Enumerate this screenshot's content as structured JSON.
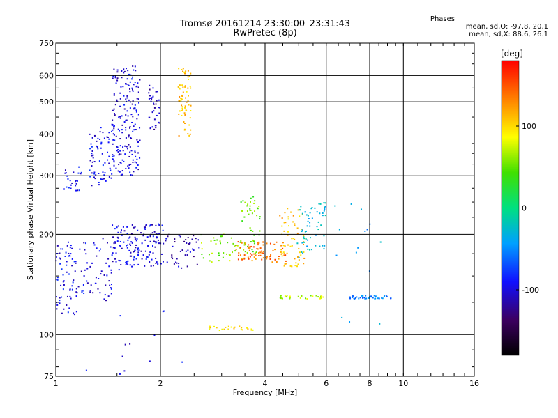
{
  "header": {
    "title": "Tromsø 20161214 23:30:00–23:31:43",
    "subtitle": "RwPretec (8p)",
    "phases_label": "Phases",
    "phases_o": "mean, sd,O: -97.8, 20.1",
    "phases_x": "mean, sd,X:  88.6, 26.1"
  },
  "chart_data": {
    "type": "scatter",
    "title": "Tromsø 20161214 23:30:00–23:31:43",
    "subtitle": "RwPretec (8p)",
    "xlabel": "Frequency [MHz]",
    "ylabel": "Stationary phase Virtual Height [km]",
    "x_scale": "log",
    "y_scale": "log",
    "xlim": [
      1,
      16
    ],
    "ylim": [
      75,
      750
    ],
    "x_ticks": [
      1,
      2,
      4,
      6,
      8,
      10,
      16
    ],
    "x_grid": [
      2,
      4,
      6,
      8,
      10
    ],
    "y_ticks": [
      75,
      100,
      200,
      300,
      400,
      500,
      600,
      750
    ],
    "y_grid": [
      100,
      200,
      300,
      400,
      500,
      600
    ],
    "grid": true,
    "colorbar": {
      "label": "[deg]",
      "range": [
        -180,
        180
      ],
      "ticks": [
        100,
        0,
        -100
      ],
      "colormap": "rainbow"
    },
    "clusters": [
      {
        "x_range": [
          1.0,
          1.15
        ],
        "y_range": [
          115,
          190
        ],
        "phase": -95,
        "count": 70
      },
      {
        "x_range": [
          1.15,
          1.45
        ],
        "y_range": [
          125,
          195
        ],
        "phase": -100,
        "count": 60
      },
      {
        "x_range": [
          1.45,
          2.05
        ],
        "y_range": [
          160,
          215
        ],
        "phase": -100,
        "count": 150
      },
      {
        "x_range": [
          1.05,
          1.2
        ],
        "y_range": [
          270,
          320
        ],
        "phase": -95,
        "count": 25
      },
      {
        "x_range": [
          1.25,
          1.45
        ],
        "y_range": [
          280,
          420
        ],
        "phase": -95,
        "count": 70
      },
      {
        "x_range": [
          1.45,
          1.75
        ],
        "y_range": [
          300,
          640
        ],
        "phase": -100,
        "count": 200
      },
      {
        "x_range": [
          1.85,
          2.0
        ],
        "y_range": [
          410,
          560
        ],
        "phase": -110,
        "count": 40
      },
      {
        "x_range": [
          2.05,
          2.6
        ],
        "y_range": [
          160,
          200
        ],
        "phase": -110,
        "count": 45
      },
      {
        "x_range": [
          2.25,
          2.45
        ],
        "y_range": [
          390,
          630
        ],
        "phase": 110,
        "count": 70
      },
      {
        "x_range": [
          2.6,
          3.5
        ],
        "y_range": [
          165,
          200
        ],
        "phase": 60,
        "count": 40
      },
      {
        "x_range": [
          3.4,
          3.9
        ],
        "y_range": [
          175,
          260
        ],
        "phase": 50,
        "count": 50
      },
      {
        "x_range": [
          3.3,
          4.6
        ],
        "y_range": [
          165,
          190
        ],
        "phase": 140,
        "count": 80
      },
      {
        "x_range": [
          4.4,
          5.2
        ],
        "y_range": [
          160,
          240
        ],
        "phase": 110,
        "count": 60
      },
      {
        "x_range": [
          4.9,
          6.0
        ],
        "y_range": [
          170,
          250
        ],
        "phase": -30,
        "count": 60
      },
      {
        "x_range": [
          2.75,
          3.7
        ],
        "y_range": [
          103,
          106
        ],
        "phase": 100,
        "count": 25
      },
      {
        "x_range": [
          4.4,
          5.9
        ],
        "y_range": [
          128,
          131
        ],
        "phase": 70,
        "count": 30
      },
      {
        "x_range": [
          7.0,
          9.3
        ],
        "y_range": [
          128,
          131
        ],
        "phase": -60,
        "count": 40
      },
      {
        "x_range": [
          6.3,
          8.8
        ],
        "y_range": [
          105,
          250
        ],
        "phase": -40,
        "count": 15
      },
      {
        "x_range": [
          1.0,
          2.4
        ],
        "y_range": [
          75,
          160
        ],
        "phase": -100,
        "count": 15
      }
    ]
  }
}
